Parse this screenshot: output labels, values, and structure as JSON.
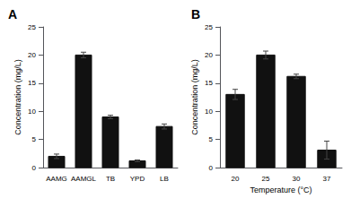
{
  "chart_data": [
    {
      "type": "bar",
      "title": "A",
      "categories": [
        "AAMG",
        "AAMGL",
        "TB",
        "YPD",
        "LB"
      ],
      "values": [
        2.0,
        20.0,
        9.0,
        1.2,
        7.3
      ],
      "errors": [
        0.4,
        0.5,
        0.3,
        0.15,
        0.45
      ],
      "ylabel": "Concentration (mg/L)",
      "color": "#111111",
      "ylim": [
        0,
        25
      ],
      "yticks": [
        0,
        5,
        10,
        15,
        20,
        25
      ],
      "grid": false
    },
    {
      "type": "bar",
      "title": "B",
      "categories": [
        "20",
        "25",
        "30",
        "37"
      ],
      "values": [
        13.0,
        20.0,
        16.2,
        3.1
      ],
      "errors": [
        0.9,
        0.7,
        0.4,
        1.6
      ],
      "ylabel": "Concentration (mg/L)",
      "xlabel": "Temperature (°C)",
      "color": "#111111",
      "ylim": [
        0,
        25
      ],
      "yticks": [
        0,
        5,
        10,
        15,
        20,
        25
      ],
      "grid": false
    }
  ]
}
